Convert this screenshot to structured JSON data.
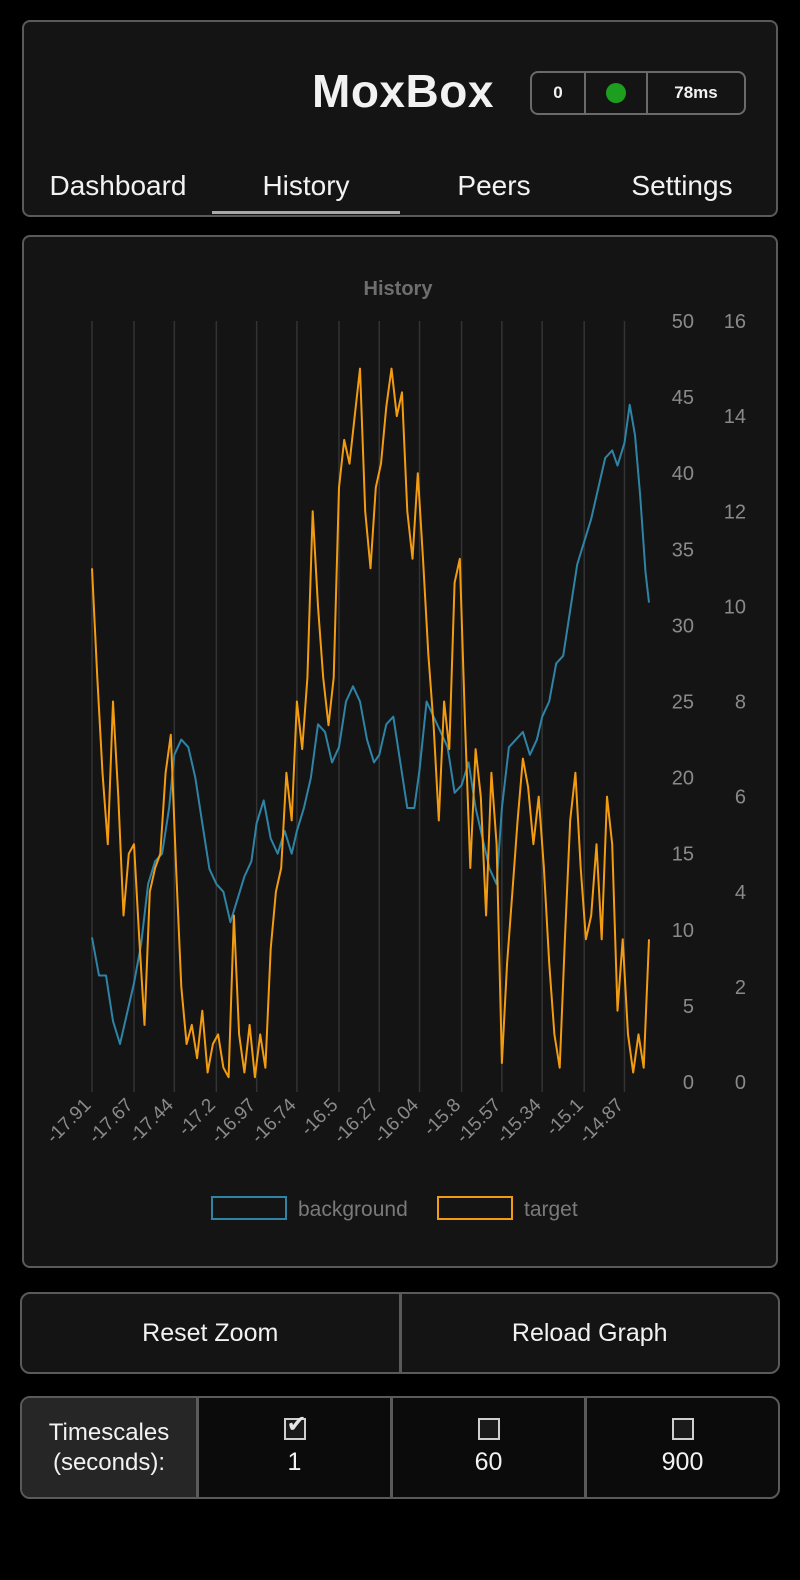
{
  "app": {
    "title": "MoxBox",
    "status": {
      "count": "0",
      "indicator_color": "#1e9e1e",
      "ping": "78ms"
    },
    "tabs": [
      {
        "label": "Dashboard",
        "active": false
      },
      {
        "label": "History",
        "active": true
      },
      {
        "label": "Peers",
        "active": false
      },
      {
        "label": "Settings",
        "active": false
      }
    ]
  },
  "chart_data": {
    "type": "line",
    "title": "History",
    "x_ticks": [
      "-17.91",
      "-17.67",
      "-17.44",
      "-17.2",
      "-16.97",
      "-16.74",
      "-16.5",
      "-16.27",
      "-16.04",
      "-15.8",
      "-15.57",
      "-15.34",
      "-15.1",
      "-14.87"
    ],
    "xlim": [
      -17.91,
      -14.73
    ],
    "grid": "vertical",
    "legend_position": "bottom",
    "y_left": {
      "ticks": [
        0,
        5,
        10,
        15,
        20,
        25,
        30,
        35,
        40,
        45,
        50
      ],
      "ylim": [
        0,
        50
      ]
    },
    "y_right": {
      "ticks": [
        0,
        2,
        4,
        6,
        8,
        10,
        12,
        14,
        16
      ],
      "ylim": [
        0,
        16
      ]
    },
    "series": [
      {
        "name": "background",
        "color": "#2f84a6",
        "axis": "left",
        "values": [
          [
            -17.91,
            9.5
          ],
          [
            -17.87,
            7.0
          ],
          [
            -17.83,
            7.0
          ],
          [
            -17.79,
            4.0
          ],
          [
            -17.75,
            2.5
          ],
          [
            -17.71,
            4.5
          ],
          [
            -17.67,
            6.5
          ],
          [
            -17.63,
            9.0
          ],
          [
            -17.59,
            13.0
          ],
          [
            -17.55,
            14.5
          ],
          [
            -17.51,
            15.0
          ],
          [
            -17.47,
            18.0
          ],
          [
            -17.44,
            21.5
          ],
          [
            -17.4,
            22.5
          ],
          [
            -17.36,
            22.0
          ],
          [
            -17.32,
            20.0
          ],
          [
            -17.28,
            17.0
          ],
          [
            -17.24,
            14.0
          ],
          [
            -17.2,
            13.0
          ],
          [
            -17.16,
            12.5
          ],
          [
            -17.12,
            10.5
          ],
          [
            -17.08,
            12.0
          ],
          [
            -17.04,
            13.5
          ],
          [
            -17.0,
            14.5
          ],
          [
            -16.97,
            17.0
          ],
          [
            -16.93,
            18.5
          ],
          [
            -16.89,
            16.0
          ],
          [
            -16.85,
            15.0
          ],
          [
            -16.81,
            16.5
          ],
          [
            -16.77,
            15.0
          ],
          [
            -16.74,
            16.5
          ],
          [
            -16.7,
            18.0
          ],
          [
            -16.66,
            20.0
          ],
          [
            -16.62,
            23.5
          ],
          [
            -16.58,
            23.0
          ],
          [
            -16.54,
            21.0
          ],
          [
            -16.5,
            22.0
          ],
          [
            -16.46,
            25.0
          ],
          [
            -16.42,
            26.0
          ],
          [
            -16.38,
            25.0
          ],
          [
            -16.34,
            22.5
          ],
          [
            -16.3,
            21.0
          ],
          [
            -16.27,
            21.5
          ],
          [
            -16.23,
            23.5
          ],
          [
            -16.19,
            24.0
          ],
          [
            -16.15,
            21.0
          ],
          [
            -16.11,
            18.0
          ],
          [
            -16.07,
            18.0
          ],
          [
            -16.04,
            20.5
          ],
          [
            -16.0,
            25.0
          ],
          [
            -15.96,
            24.0
          ],
          [
            -15.92,
            23.0
          ],
          [
            -15.88,
            22.0
          ],
          [
            -15.84,
            19.0
          ],
          [
            -15.8,
            19.5
          ],
          [
            -15.76,
            21.0
          ],
          [
            -15.72,
            18.0
          ],
          [
            -15.68,
            16.0
          ],
          [
            -15.64,
            14.0
          ],
          [
            -15.6,
            13.0
          ],
          [
            -15.57,
            18.0
          ],
          [
            -15.53,
            22.0
          ],
          [
            -15.49,
            22.5
          ],
          [
            -15.45,
            23.0
          ],
          [
            -15.41,
            21.5
          ],
          [
            -15.37,
            22.5
          ],
          [
            -15.34,
            24.0
          ],
          [
            -15.3,
            25.0
          ],
          [
            -15.26,
            27.5
          ],
          [
            -15.22,
            28.0
          ],
          [
            -15.18,
            31.0
          ],
          [
            -15.14,
            34.0
          ],
          [
            -15.1,
            35.5
          ],
          [
            -15.06,
            37.0
          ],
          [
            -15.02,
            39.0
          ],
          [
            -14.98,
            41.0
          ],
          [
            -14.94,
            41.5
          ],
          [
            -14.91,
            40.5
          ],
          [
            -14.87,
            42.0
          ],
          [
            -14.84,
            44.5
          ],
          [
            -14.81,
            42.5
          ],
          [
            -14.78,
            38.5
          ],
          [
            -14.75,
            33.5
          ],
          [
            -14.73,
            31.5
          ]
        ]
      },
      {
        "name": "target",
        "color": "#f39c12",
        "axis": "right",
        "values": [
          [
            -17.91,
            10.8
          ],
          [
            -17.88,
            8.5
          ],
          [
            -17.85,
            6.5
          ],
          [
            -17.82,
            5.0
          ],
          [
            -17.79,
            8.0
          ],
          [
            -17.76,
            6.0
          ],
          [
            -17.73,
            3.5
          ],
          [
            -17.7,
            4.8
          ],
          [
            -17.67,
            5.0
          ],
          [
            -17.64,
            3.0
          ],
          [
            -17.61,
            1.2
          ],
          [
            -17.58,
            4.0
          ],
          [
            -17.55,
            4.5
          ],
          [
            -17.52,
            4.8
          ],
          [
            -17.49,
            6.5
          ],
          [
            -17.46,
            7.3
          ],
          [
            -17.43,
            4.5
          ],
          [
            -17.4,
            2.0
          ],
          [
            -17.37,
            0.8
          ],
          [
            -17.34,
            1.2
          ],
          [
            -17.31,
            0.5
          ],
          [
            -17.28,
            1.5
          ],
          [
            -17.25,
            0.2
          ],
          [
            -17.22,
            0.8
          ],
          [
            -17.19,
            1.0
          ],
          [
            -17.16,
            0.3
          ],
          [
            -17.13,
            0.1
          ],
          [
            -17.1,
            3.5
          ],
          [
            -17.07,
            1.0
          ],
          [
            -17.04,
            0.2
          ],
          [
            -17.01,
            1.2
          ],
          [
            -16.98,
            0.1
          ],
          [
            -16.95,
            1.0
          ],
          [
            -16.92,
            0.3
          ],
          [
            -16.89,
            2.8
          ],
          [
            -16.86,
            4.0
          ],
          [
            -16.83,
            4.5
          ],
          [
            -16.8,
            6.5
          ],
          [
            -16.77,
            5.5
          ],
          [
            -16.74,
            8.0
          ],
          [
            -16.71,
            7.0
          ],
          [
            -16.68,
            8.5
          ],
          [
            -16.65,
            12.0
          ],
          [
            -16.62,
            10.0
          ],
          [
            -16.59,
            8.5
          ],
          [
            -16.56,
            7.5
          ],
          [
            -16.53,
            8.5
          ],
          [
            -16.5,
            12.5
          ],
          [
            -16.47,
            13.5
          ],
          [
            -16.44,
            13.0
          ],
          [
            -16.41,
            14.0
          ],
          [
            -16.38,
            15.0
          ],
          [
            -16.35,
            12.0
          ],
          [
            -16.32,
            10.8
          ],
          [
            -16.29,
            12.5
          ],
          [
            -16.26,
            13.0
          ],
          [
            -16.23,
            14.2
          ],
          [
            -16.2,
            15.0
          ],
          [
            -16.17,
            14.0
          ],
          [
            -16.14,
            14.5
          ],
          [
            -16.11,
            12.0
          ],
          [
            -16.08,
            11.0
          ],
          [
            -16.05,
            12.8
          ],
          [
            -16.02,
            11.0
          ],
          [
            -15.99,
            9.0
          ],
          [
            -15.96,
            7.5
          ],
          [
            -15.93,
            5.5
          ],
          [
            -15.9,
            8.0
          ],
          [
            -15.87,
            7.0
          ],
          [
            -15.84,
            10.5
          ],
          [
            -15.81,
            11.0
          ],
          [
            -15.78,
            7.5
          ],
          [
            -15.75,
            4.5
          ],
          [
            -15.72,
            7.0
          ],
          [
            -15.69,
            6.0
          ],
          [
            -15.66,
            3.5
          ],
          [
            -15.63,
            6.5
          ],
          [
            -15.6,
            5.0
          ],
          [
            -15.57,
            0.4
          ],
          [
            -15.54,
            2.5
          ],
          [
            -15.51,
            4.0
          ],
          [
            -15.48,
            5.5
          ],
          [
            -15.45,
            6.8
          ],
          [
            -15.42,
            6.2
          ],
          [
            -15.39,
            5.0
          ],
          [
            -15.36,
            6.0
          ],
          [
            -15.33,
            4.5
          ],
          [
            -15.3,
            2.5
          ],
          [
            -15.27,
            1.0
          ],
          [
            -15.24,
            0.3
          ],
          [
            -15.21,
            3.0
          ],
          [
            -15.18,
            5.5
          ],
          [
            -15.15,
            6.5
          ],
          [
            -15.12,
            4.5
          ],
          [
            -15.09,
            3.0
          ],
          [
            -15.06,
            3.5
          ],
          [
            -15.03,
            5.0
          ],
          [
            -15.0,
            3.0
          ],
          [
            -14.97,
            6.0
          ],
          [
            -14.94,
            5.0
          ],
          [
            -14.91,
            1.5
          ],
          [
            -14.88,
            3.0
          ],
          [
            -14.85,
            1.0
          ],
          [
            -14.82,
            0.2
          ],
          [
            -14.79,
            1.0
          ],
          [
            -14.76,
            0.3
          ],
          [
            -14.73,
            3.0
          ]
        ]
      }
    ]
  },
  "actions": {
    "reset_label": "Reset Zoom",
    "reload_label": "Reload Graph"
  },
  "timescales": {
    "label": "Timescales\n(seconds):",
    "options": [
      {
        "value": "1",
        "checked": true
      },
      {
        "value": "60",
        "checked": false
      },
      {
        "value": "900",
        "checked": false
      }
    ]
  }
}
